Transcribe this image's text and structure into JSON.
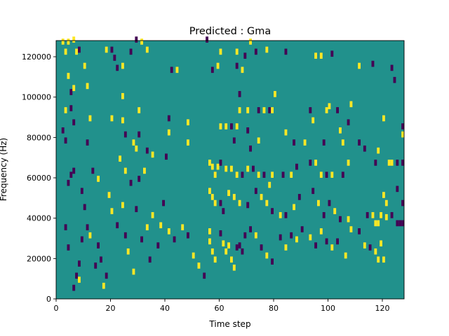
{
  "chart_data": {
    "type": "heatmap",
    "title": "Predicted : Gma",
    "xlabel": "Time step",
    "ylabel": "Frequency (Hz)",
    "xlim": [
      0,
      128
    ],
    "ylim": [
      0,
      128000
    ],
    "xticks": [
      0,
      20,
      40,
      60,
      80,
      100,
      120
    ],
    "yticks": [
      0,
      20000,
      40000,
      60000,
      80000,
      100000,
      120000
    ],
    "xtick_labels": [
      "0",
      "20",
      "40",
      "60",
      "80",
      "100",
      "120"
    ],
    "ytick_labels": [
      "0",
      "20000",
      "40000",
      "60000",
      "80000",
      "100000",
      "120000"
    ],
    "grid": false,
    "colors": {
      "background": "#21918c",
      "low": "#440154",
      "high": "#fde725"
    },
    "values_legend": {
      "background": 0,
      "low": -1,
      "high": 1
    },
    "bin_height_hz": 1000,
    "cells": [
      {
        "t": 2,
        "f": 126000,
        "v": 1
      },
      {
        "t": 3,
        "f": 121000,
        "v": 1
      },
      {
        "t": 4,
        "f": 126000,
        "v": 1
      },
      {
        "t": 6,
        "f": 127000,
        "v": 1
      },
      {
        "t": 7,
        "f": 121000,
        "v": 1
      },
      {
        "t": 8,
        "f": 122000,
        "v": -1
      },
      {
        "t": 10,
        "f": 114000,
        "v": 1
      },
      {
        "t": 11,
        "f": 104000,
        "v": 1
      },
      {
        "t": 4,
        "f": 109000,
        "v": 1
      },
      {
        "t": 5,
        "f": 101000,
        "v": -1
      },
      {
        "t": 6,
        "f": 103000,
        "v": 1
      },
      {
        "t": 3,
        "f": 92000,
        "v": 1
      },
      {
        "t": 5,
        "f": 93000,
        "v": -1
      },
      {
        "t": 2,
        "f": 82000,
        "v": -1
      },
      {
        "t": 3,
        "f": 77000,
        "v": -1
      },
      {
        "t": 6,
        "f": 86000,
        "v": -1
      },
      {
        "t": 11,
        "f": 76000,
        "v": -1
      },
      {
        "t": 12,
        "f": 88000,
        "v": 1
      },
      {
        "t": 18,
        "f": 122000,
        "v": 1
      },
      {
        "t": 20,
        "f": 122000,
        "v": -1
      },
      {
        "t": 21,
        "f": 118000,
        "v": -1
      },
      {
        "t": 22,
        "f": 113000,
        "v": -1
      },
      {
        "t": 24,
        "f": 114000,
        "v": 1
      },
      {
        "t": 27,
        "f": 121000,
        "v": -1
      },
      {
        "t": 29,
        "f": 127000,
        "v": -1
      },
      {
        "t": 31,
        "f": 126000,
        "v": 1
      },
      {
        "t": 33,
        "f": 122000,
        "v": 1
      },
      {
        "t": 30,
        "f": 92000,
        "v": 1
      },
      {
        "t": 24,
        "f": 99000,
        "v": 1
      },
      {
        "t": 24,
        "f": 87000,
        "v": 1
      },
      {
        "t": 20,
        "f": 88000,
        "v": 1
      },
      {
        "t": 25,
        "f": 80000,
        "v": -1
      },
      {
        "t": 28,
        "f": 76000,
        "v": 1
      },
      {
        "t": 29,
        "f": 73000,
        "v": 1
      },
      {
        "t": 30,
        "f": 80000,
        "v": -1
      },
      {
        "t": 33,
        "f": 72000,
        "v": -1
      },
      {
        "t": 35,
        "f": 70000,
        "v": 1
      },
      {
        "t": 41,
        "f": 88000,
        "v": -1
      },
      {
        "t": 41,
        "f": 81000,
        "v": 1
      },
      {
        "t": 42,
        "f": 112000,
        "v": -1
      },
      {
        "t": 44,
        "f": 112000,
        "v": 1
      },
      {
        "t": 48,
        "f": 86000,
        "v": 1
      },
      {
        "t": 48,
        "f": 76000,
        "v": 1
      },
      {
        "t": 40,
        "f": 69000,
        "v": -1
      },
      {
        "t": 55,
        "f": 127000,
        "v": -1
      },
      {
        "t": 57,
        "f": 112000,
        "v": -1
      },
      {
        "t": 59,
        "f": 114000,
        "v": 1
      },
      {
        "t": 60,
        "f": 121000,
        "v": 1
      },
      {
        "t": 66,
        "f": 121000,
        "v": 1
      },
      {
        "t": 66,
        "f": 114000,
        "v": -1
      },
      {
        "t": 68,
        "f": 112000,
        "v": 1
      },
      {
        "t": 69,
        "f": 119000,
        "v": -1
      },
      {
        "t": 71,
        "f": 126000,
        "v": 1
      },
      {
        "t": 73,
        "f": 121000,
        "v": -1
      },
      {
        "t": 77,
        "f": 122000,
        "v": 1
      },
      {
        "t": 84,
        "f": 121000,
        "v": -1
      },
      {
        "t": 67,
        "f": 100000,
        "v": -1
      },
      {
        "t": 80,
        "f": 100000,
        "v": 1
      },
      {
        "t": 67,
        "f": 92000,
        "v": 1
      },
      {
        "t": 70,
        "f": 92000,
        "v": 1
      },
      {
        "t": 74,
        "f": 92000,
        "v": -1
      },
      {
        "t": 76,
        "f": 92000,
        "v": 1
      },
      {
        "t": 78,
        "f": 92000,
        "v": -1
      },
      {
        "t": 79,
        "f": 92000,
        "v": 1
      },
      {
        "t": 60,
        "f": 84000,
        "v": 1
      },
      {
        "t": 62,
        "f": 84000,
        "v": 1
      },
      {
        "t": 64,
        "f": 84000,
        "v": -1
      },
      {
        "t": 66,
        "f": 84000,
        "v": 1
      },
      {
        "t": 65,
        "f": 77000,
        "v": -1
      },
      {
        "t": 70,
        "f": 82000,
        "v": -1
      },
      {
        "t": 71,
        "f": 73000,
        "v": -1
      },
      {
        "t": 74,
        "f": 77000,
        "v": 1
      },
      {
        "t": 84,
        "f": 81000,
        "v": 1
      },
      {
        "t": 87,
        "f": 76000,
        "v": -1
      },
      {
        "t": 91,
        "f": 76000,
        "v": 1
      },
      {
        "t": 93,
        "f": 92000,
        "v": -1
      },
      {
        "t": 99,
        "f": 92000,
        "v": 1
      },
      {
        "t": 94,
        "f": 87000,
        "v": 1
      },
      {
        "t": 100,
        "f": 94000,
        "v": 1
      },
      {
        "t": 103,
        "f": 92000,
        "v": -1
      },
      {
        "t": 108,
        "f": 95000,
        "v": 1
      },
      {
        "t": 107,
        "f": 86000,
        "v": -1
      },
      {
        "t": 104,
        "f": 82000,
        "v": 1
      },
      {
        "t": 98,
        "f": 76000,
        "v": -1
      },
      {
        "t": 105,
        "f": 76000,
        "v": 1
      },
      {
        "t": 111,
        "f": 76000,
        "v": -1
      },
      {
        "t": 95,
        "f": 119000,
        "v": 1
      },
      {
        "t": 97,
        "f": 119000,
        "v": 1
      },
      {
        "t": 101,
        "f": 120000,
        "v": -1
      },
      {
        "t": 111,
        "f": 114000,
        "v": 1
      },
      {
        "t": 116,
        "f": 115000,
        "v": -1
      },
      {
        "t": 123,
        "f": 113000,
        "v": -1
      },
      {
        "t": 124,
        "f": 107000,
        "v": -1
      },
      {
        "t": 120,
        "f": 88000,
        "v": 1
      },
      {
        "t": 127,
        "f": 84000,
        "v": -1
      },
      {
        "t": 127,
        "f": 80000,
        "v": 1
      },
      {
        "t": 113,
        "f": 73000,
        "v": -1
      },
      {
        "t": 118,
        "f": 72000,
        "v": 1
      },
      {
        "t": 117,
        "f": 66000,
        "v": -1
      },
      {
        "t": 122,
        "f": 66000,
        "v": 1
      },
      {
        "t": 123,
        "f": 66000,
        "v": 1
      },
      {
        "t": 125,
        "f": 66000,
        "v": -1
      },
      {
        "t": 127,
        "f": 66000,
        "v": -1
      },
      {
        "t": 56,
        "f": 66000,
        "v": 1
      },
      {
        "t": 57,
        "f": 64000,
        "v": 1
      },
      {
        "t": 58,
        "f": 60000,
        "v": 1
      },
      {
        "t": 59,
        "f": 64000,
        "v": 1
      },
      {
        "t": 60,
        "f": 66000,
        "v": -1
      },
      {
        "t": 62,
        "f": 63000,
        "v": 1
      },
      {
        "t": 64,
        "f": 63000,
        "v": 1
      },
      {
        "t": 66,
        "f": 60000,
        "v": 1
      },
      {
        "t": 68,
        "f": 60000,
        "v": -1
      },
      {
        "t": 70,
        "f": 63000,
        "v": 1
      },
      {
        "t": 72,
        "f": 63000,
        "v": -1
      },
      {
        "t": 74,
        "f": 60000,
        "v": 1
      },
      {
        "t": 76,
        "f": 60000,
        "v": -1
      },
      {
        "t": 78,
        "f": 55000,
        "v": 1
      },
      {
        "t": 79,
        "f": 60000,
        "v": 1
      },
      {
        "t": 83,
        "f": 60000,
        "v": -1
      },
      {
        "t": 86,
        "f": 60000,
        "v": 1
      },
      {
        "t": 88,
        "f": 64000,
        "v": -1
      },
      {
        "t": 93,
        "f": 66000,
        "v": -1
      },
      {
        "t": 95,
        "f": 66000,
        "v": 1
      },
      {
        "t": 97,
        "f": 60000,
        "v": 1
      },
      {
        "t": 99,
        "f": 60000,
        "v": -1
      },
      {
        "t": 101,
        "f": 60000,
        "v": 1
      },
      {
        "t": 105,
        "f": 60000,
        "v": -1
      },
      {
        "t": 107,
        "f": 66000,
        "v": 1
      },
      {
        "t": 56,
        "f": 52000,
        "v": 1
      },
      {
        "t": 57,
        "f": 49000,
        "v": 1
      },
      {
        "t": 58,
        "f": 46000,
        "v": 1
      },
      {
        "t": 60,
        "f": 46000,
        "v": -1
      },
      {
        "t": 61,
        "f": 42000,
        "v": -1
      },
      {
        "t": 63,
        "f": 51000,
        "v": 1
      },
      {
        "t": 65,
        "f": 49000,
        "v": 1
      },
      {
        "t": 67,
        "f": 46000,
        "v": 1
      },
      {
        "t": 70,
        "f": 45000,
        "v": -1
      },
      {
        "t": 73,
        "f": 52000,
        "v": -1
      },
      {
        "t": 75,
        "f": 49000,
        "v": 1
      },
      {
        "t": 77,
        "f": 46000,
        "v": 1
      },
      {
        "t": 79,
        "f": 42000,
        "v": -1
      },
      {
        "t": 82,
        "f": 40000,
        "v": 1
      },
      {
        "t": 84,
        "f": 40000,
        "v": -1
      },
      {
        "t": 87,
        "f": 44000,
        "v": 1
      },
      {
        "t": 89,
        "f": 49000,
        "v": -1
      },
      {
        "t": 94,
        "f": 52000,
        "v": -1
      },
      {
        "t": 96,
        "f": 46000,
        "v": 1
      },
      {
        "t": 98,
        "f": 40000,
        "v": -1
      },
      {
        "t": 100,
        "f": 46000,
        "v": -1
      },
      {
        "t": 102,
        "f": 42000,
        "v": 1
      },
      {
        "t": 104,
        "f": 38000,
        "v": -1
      },
      {
        "t": 107,
        "f": 38000,
        "v": 1
      },
      {
        "t": 114,
        "f": 40000,
        "v": -1
      },
      {
        "t": 116,
        "f": 40000,
        "v": 1
      },
      {
        "t": 117,
        "f": 36000,
        "v": 1
      },
      {
        "t": 118,
        "f": 36000,
        "v": 1
      },
      {
        "t": 119,
        "f": 40000,
        "v": 1
      },
      {
        "t": 120,
        "f": 50000,
        "v": 1
      },
      {
        "t": 121,
        "f": 46000,
        "v": 1
      },
      {
        "t": 125,
        "f": 53000,
        "v": -1
      },
      {
        "t": 127,
        "f": 46000,
        "v": -1
      },
      {
        "t": 127,
        "f": 36000,
        "v": -1
      },
      {
        "t": 126,
        "f": 36000,
        "v": -1
      },
      {
        "t": 125,
        "f": 36000,
        "v": -1
      },
      {
        "t": 123,
        "f": 40000,
        "v": -1
      },
      {
        "t": 121,
        "f": 39000,
        "v": 1
      },
      {
        "t": 56,
        "f": 32000,
        "v": 1
      },
      {
        "t": 56,
        "f": 27000,
        "v": 1
      },
      {
        "t": 57,
        "f": 22000,
        "v": 1
      },
      {
        "t": 58,
        "f": 18000,
        "v": 1
      },
      {
        "t": 60,
        "f": 31000,
        "v": -1
      },
      {
        "t": 61,
        "f": 26000,
        "v": 1
      },
      {
        "t": 62,
        "f": 22000,
        "v": 1
      },
      {
        "t": 63,
        "f": 25000,
        "v": 1
      },
      {
        "t": 64,
        "f": 18000,
        "v": 1
      },
      {
        "t": 65,
        "f": 14000,
        "v": 1
      },
      {
        "t": 66,
        "f": 24000,
        "v": -1
      },
      {
        "t": 67,
        "f": 25000,
        "v": -1
      },
      {
        "t": 68,
        "f": 22000,
        "v": -1
      },
      {
        "t": 69,
        "f": 30000,
        "v": -1
      },
      {
        "t": 71,
        "f": 33000,
        "v": -1
      },
      {
        "t": 73,
        "f": 30000,
        "v": 1
      },
      {
        "t": 75,
        "f": 24000,
        "v": -1
      },
      {
        "t": 77,
        "f": 20000,
        "v": 1
      },
      {
        "t": 79,
        "f": 17000,
        "v": -1
      },
      {
        "t": 82,
        "f": 29000,
        "v": -1
      },
      {
        "t": 84,
        "f": 24000,
        "v": 1
      },
      {
        "t": 86,
        "f": 30000,
        "v": -1
      },
      {
        "t": 88,
        "f": 28000,
        "v": 1
      },
      {
        "t": 90,
        "f": 33000,
        "v": -1
      },
      {
        "t": 93,
        "f": 29000,
        "v": 1
      },
      {
        "t": 95,
        "f": 25000,
        "v": -1
      },
      {
        "t": 97,
        "f": 32000,
        "v": 1
      },
      {
        "t": 99,
        "f": 27000,
        "v": -1
      },
      {
        "t": 101,
        "f": 24000,
        "v": 1
      },
      {
        "t": 103,
        "f": 27000,
        "v": -1
      },
      {
        "t": 106,
        "f": 20000,
        "v": 1
      },
      {
        "t": 108,
        "f": 33000,
        "v": 1
      },
      {
        "t": 111,
        "f": 32000,
        "v": -1
      },
      {
        "t": 113,
        "f": 25000,
        "v": 1
      },
      {
        "t": 115,
        "f": 24000,
        "v": -1
      },
      {
        "t": 117,
        "f": 22000,
        "v": 1
      },
      {
        "t": 118,
        "f": 18000,
        "v": 1
      },
      {
        "t": 119,
        "f": 26000,
        "v": 1
      },
      {
        "t": 120,
        "f": 18000,
        "v": 1
      },
      {
        "t": 4,
        "f": 24000,
        "v": -1
      },
      {
        "t": 3,
        "f": 34000,
        "v": -1
      },
      {
        "t": 7,
        "f": 10000,
        "v": -1
      },
      {
        "t": 8,
        "f": 8000,
        "v": 1
      },
      {
        "t": 8,
        "f": 16000,
        "v": -1
      },
      {
        "t": 9,
        "f": 28000,
        "v": -1
      },
      {
        "t": 10,
        "f": 44000,
        "v": -1
      },
      {
        "t": 12,
        "f": 30000,
        "v": 1
      },
      {
        "t": 14,
        "f": 15000,
        "v": -1
      },
      {
        "t": 15,
        "f": 25000,
        "v": -1
      },
      {
        "t": 16,
        "f": 18000,
        "v": -1
      },
      {
        "t": 17,
        "f": 5000,
        "v": 1
      },
      {
        "t": 18,
        "f": 10000,
        "v": -1
      },
      {
        "t": 19,
        "f": 50000,
        "v": 1
      },
      {
        "t": 20,
        "f": 42000,
        "v": 1
      },
      {
        "t": 22,
        "f": 35000,
        "v": -1
      },
      {
        "t": 24,
        "f": 45000,
        "v": 1
      },
      {
        "t": 25,
        "f": 30000,
        "v": -1
      },
      {
        "t": 26,
        "f": 22000,
        "v": 1
      },
      {
        "t": 27,
        "f": 56000,
        "v": -1
      },
      {
        "t": 28,
        "f": 12000,
        "v": 1
      },
      {
        "t": 29,
        "f": 43000,
        "v": -1
      },
      {
        "t": 31,
        "f": 28000,
        "v": -1
      },
      {
        "t": 33,
        "f": 34000,
        "v": 1
      },
      {
        "t": 34,
        "f": 18000,
        "v": -1
      },
      {
        "t": 35,
        "f": 40000,
        "v": 1
      },
      {
        "t": 37,
        "f": 25000,
        "v": -1
      },
      {
        "t": 38,
        "f": 35000,
        "v": 1
      },
      {
        "t": 39,
        "f": 46000,
        "v": -1
      },
      {
        "t": 41,
        "f": 32000,
        "v": 1
      },
      {
        "t": 43,
        "f": 28000,
        "v": -1
      },
      {
        "t": 46,
        "f": 34000,
        "v": 1
      },
      {
        "t": 48,
        "f": 30000,
        "v": -1
      },
      {
        "t": 50,
        "f": 20000,
        "v": 1
      },
      {
        "t": 52,
        "f": 15000,
        "v": 1
      },
      {
        "t": 54,
        "f": 10000,
        "v": -1
      },
      {
        "t": 23,
        "f": 68000,
        "v": 1
      },
      {
        "t": 25,
        "f": 62000,
        "v": 1
      },
      {
        "t": 30,
        "f": 58000,
        "v": -1
      },
      {
        "t": 32,
        "f": 62000,
        "v": 1
      },
      {
        "t": 13,
        "f": 62000,
        "v": -1
      },
      {
        "t": 15,
        "f": 58000,
        "v": 1
      },
      {
        "t": 4,
        "f": 56000,
        "v": -1
      },
      {
        "t": 5,
        "f": 60000,
        "v": -1
      },
      {
        "t": 6,
        "f": 62000,
        "v": -1
      },
      {
        "t": 9,
        "f": 52000,
        "v": -1
      },
      {
        "t": 11,
        "f": 34000,
        "v": -1
      },
      {
        "t": 6,
        "f": 4000,
        "v": -1
      }
    ]
  }
}
